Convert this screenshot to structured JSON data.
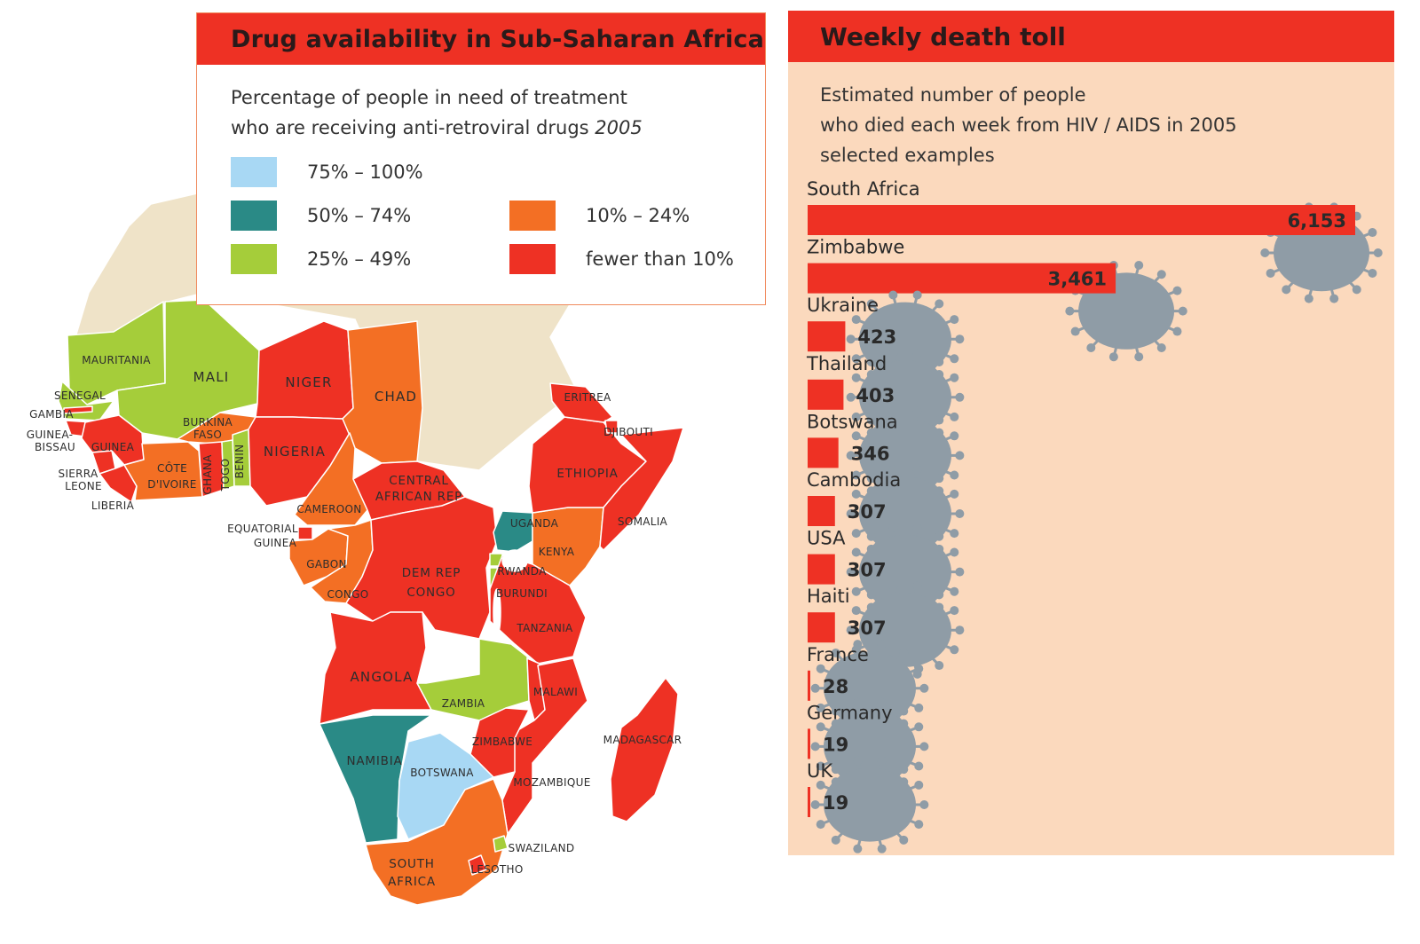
{
  "map": {
    "title": "Drug availability in Sub-Saharan Africa",
    "subtitle_line1": "Percentage of people in need of treatment",
    "subtitle_line2": "who are receiving anti-retroviral drugs",
    "subtitle_year": "2005",
    "legend": [
      {
        "label": "75% – 100%",
        "color": "#a8d8f4"
      },
      {
        "label": "50% – 74%",
        "color": "#2a8a86"
      },
      {
        "label": "25% – 49%",
        "color": "#a5cd3a"
      },
      {
        "label": "10% – 24%",
        "color": "#f36f24"
      },
      {
        "label": "fewer than 10%",
        "color": "#ee3124"
      }
    ],
    "colors": {
      "north_africa": "#efe3c8",
      "border": "#ffffff",
      "water": "#ffffff"
    },
    "countries": [
      {
        "label": "MAURITANIA",
        "category": "25% – 49%"
      },
      {
        "label": "MALI",
        "category": "25% – 49%"
      },
      {
        "label": "NIGER",
        "category": "fewer than 10%"
      },
      {
        "label": "CHAD",
        "category": "10% – 24%"
      },
      {
        "label": "SENEGAL",
        "category": "25% – 49%"
      },
      {
        "label": "GAMBIA",
        "category": "fewer than 10%"
      },
      {
        "label": "GUINEA-BISSAU",
        "category": "fewer than 10%"
      },
      {
        "label": "GUINEA",
        "category": "fewer than 10%"
      },
      {
        "label": "SIERRA LEONE",
        "category": "fewer than 10%"
      },
      {
        "label": "LIBERIA",
        "category": "fewer than 10%"
      },
      {
        "label": "CÔTE D'IVOIRE",
        "category": "10% – 24%"
      },
      {
        "label": "BURKINA FASO",
        "category": "10% – 24%"
      },
      {
        "label": "GHANA",
        "category": "fewer than 10%"
      },
      {
        "label": "TOGO",
        "category": "25% – 49%"
      },
      {
        "label": "BENIN",
        "category": "25% – 49%"
      },
      {
        "label": "NIGERIA",
        "category": "fewer than 10%"
      },
      {
        "label": "CAMEROON",
        "category": "10% – 24%"
      },
      {
        "label": "EQUATORIAL GUINEA",
        "category": "fewer than 10%"
      },
      {
        "label": "GABON",
        "category": "10% – 24%"
      },
      {
        "label": "CONGO",
        "category": "10% – 24%"
      },
      {
        "label": "CENTRAL AFRICAN REP",
        "category": "fewer than 10%"
      },
      {
        "label": "DEM REP CONGO",
        "category": "fewer than 10%"
      },
      {
        "label": "ERITREA",
        "category": "fewer than 10%"
      },
      {
        "label": "DJIBOUTI",
        "category": "fewer than 10%"
      },
      {
        "label": "ETHIOPIA",
        "category": "fewer than 10%"
      },
      {
        "label": "SOMALIA",
        "category": "fewer than 10%"
      },
      {
        "label": "UGANDA",
        "category": "50% – 74%"
      },
      {
        "label": "KENYA",
        "category": "10% – 24%"
      },
      {
        "label": "RWANDA",
        "category": "25% – 49%"
      },
      {
        "label": "BURUNDI",
        "category": "25% – 49%"
      },
      {
        "label": "TANZANIA",
        "category": "fewer than 10%"
      },
      {
        "label": "ANGOLA",
        "category": "fewer than 10%"
      },
      {
        "label": "ZAMBIA",
        "category": "25% – 49%"
      },
      {
        "label": "MALAWI",
        "category": "fewer than 10%"
      },
      {
        "label": "ZIMBABWE",
        "category": "fewer than 10%"
      },
      {
        "label": "MOZAMBIQUE",
        "category": "fewer than 10%"
      },
      {
        "label": "MADAGASCAR",
        "category": "fewer than 10%"
      },
      {
        "label": "NAMIBIA",
        "category": "50% – 74%"
      },
      {
        "label": "BOTSWANA",
        "category": "75% – 100%"
      },
      {
        "label": "SOUTH AFRICA",
        "category": "10% – 24%"
      },
      {
        "label": "SWAZILAND",
        "category": "25% – 49%"
      },
      {
        "label": "LESOTHO",
        "category": "fewer than 10%"
      }
    ]
  },
  "chart_data": {
    "type": "bar",
    "title": "Weekly death toll",
    "subtitle": [
      "Estimated number of people",
      "who died each week from HIV / AIDS in 2005",
      "selected examples"
    ],
    "categories": [
      "South Africa",
      "Zimbabwe",
      "Ukraine",
      "Thailand",
      "Botswana",
      "Cambodia",
      "USA",
      "Haiti",
      "France",
      "Germany",
      "UK"
    ],
    "values": [
      6153,
      3461,
      423,
      403,
      346,
      307,
      307,
      307,
      28,
      19,
      19
    ],
    "value_labels": [
      "6,153",
      "3,461",
      "423",
      "403",
      "346",
      "307",
      "307",
      "307",
      "28",
      "19",
      "19"
    ],
    "orientation": "horizontal",
    "bar_color": "#ee3124",
    "virus_color": "#8f9ca6",
    "panel_color": "#fbd9bd"
  }
}
